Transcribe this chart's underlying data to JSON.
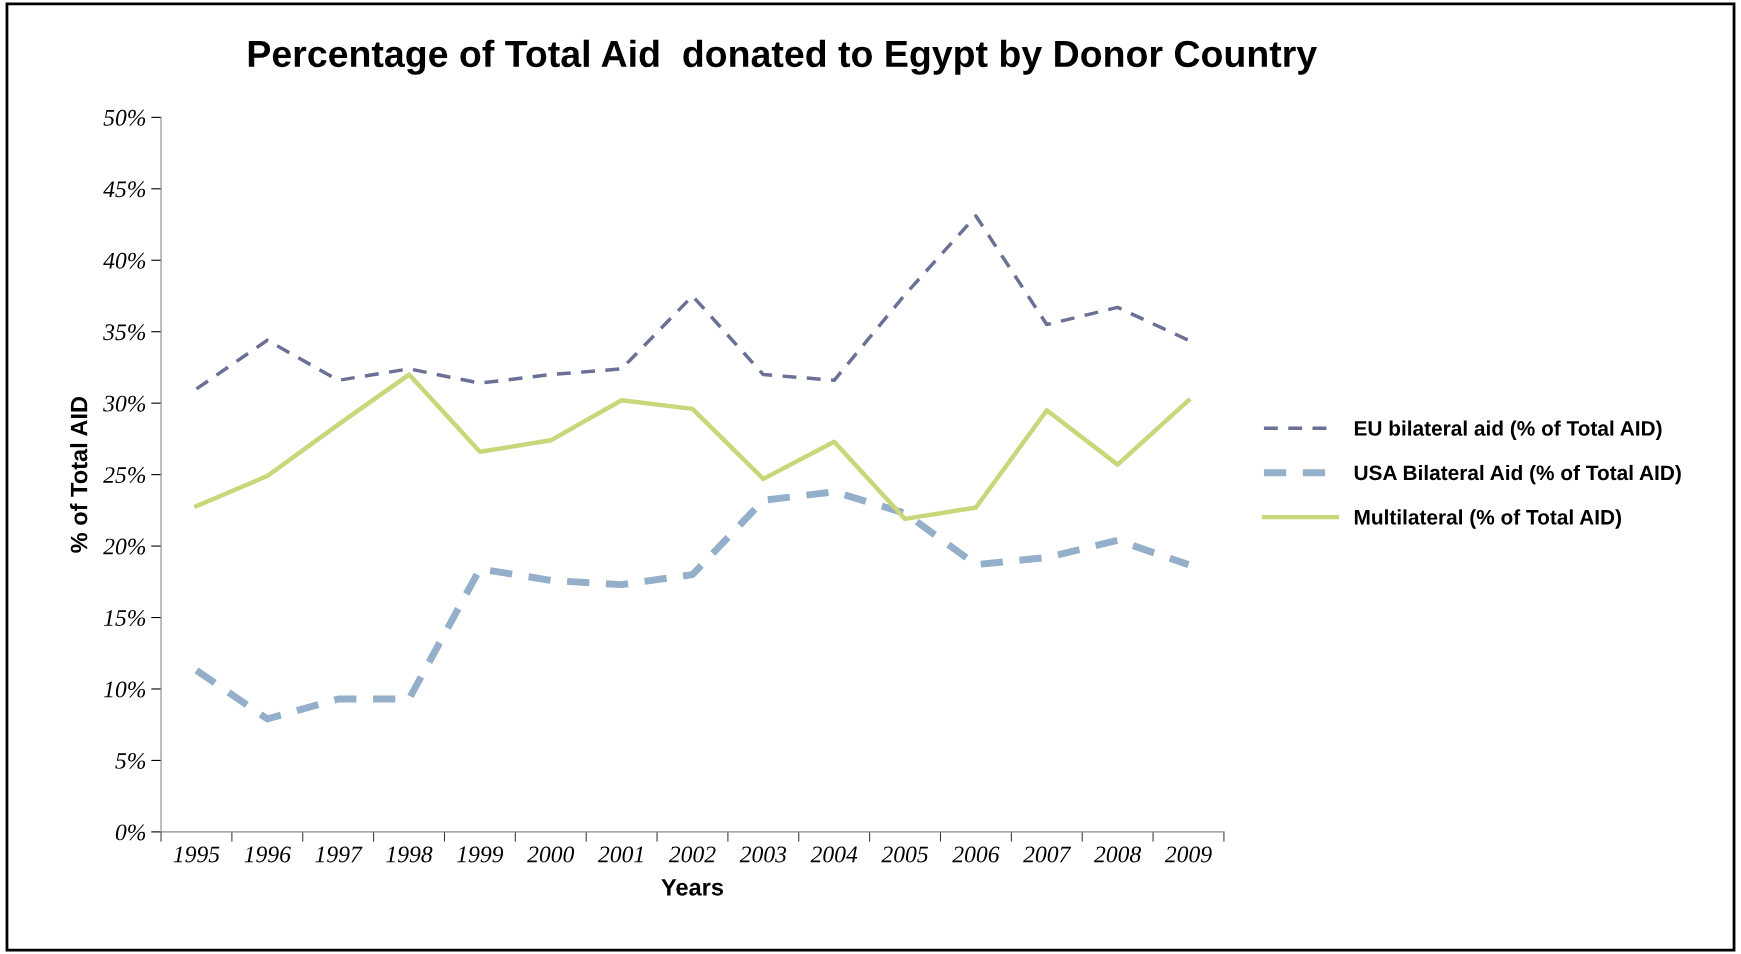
{
  "chart_data": {
    "type": "line",
    "title": "Percentage of Total Aid  donated to Egypt by Donor Country",
    "xlabel": "Years",
    "ylabel": "% of Total AID",
    "categories": [
      "1995",
      "1996",
      "1997",
      "1998",
      "1999",
      "2000",
      "2001",
      "2002",
      "2003",
      "2004",
      "2005",
      "2006",
      "2007",
      "2008",
      "2009"
    ],
    "series": [
      {
        "name": "EU bilateral aid (% of Total AID)",
        "color": "#6b7096",
        "line_style": "dashed",
        "values": [
          31.0,
          34.4,
          31.6,
          32.4,
          31.4,
          32.0,
          32.4,
          37.5,
          32.0,
          31.6,
          37.6,
          43.1,
          35.5,
          36.7,
          34.4
        ]
      },
      {
        "name": "USA Bilateral Aid (% of Total AID)",
        "color": "#94afc9",
        "line_style": "dashed",
        "values": [
          11.3,
          7.9,
          9.3,
          9.3,
          18.4,
          17.6,
          17.3,
          18.0,
          23.2,
          23.8,
          22.3,
          18.7,
          19.2,
          20.4,
          18.7
        ]
      },
      {
        "name": "Multilateral (% of Total AID)",
        "color": "#c9d67a",
        "line_style": "solid",
        "values": [
          22.8,
          24.9,
          28.5,
          32.0,
          26.6,
          27.4,
          30.2,
          29.6,
          24.7,
          27.3,
          21.9,
          22.7,
          29.5,
          25.7,
          30.2
        ]
      }
    ],
    "ylim": [
      0,
      50
    ],
    "yticks": [
      {
        "value": 0,
        "label": "0%"
      },
      {
        "value": 5,
        "label": "5%"
      },
      {
        "value": 10,
        "label": "10%"
      },
      {
        "value": 15,
        "label": "15%"
      },
      {
        "value": 20,
        "label": "20%"
      },
      {
        "value": 25,
        "label": "25%"
      },
      {
        "value": 30,
        "label": "30%"
      },
      {
        "value": 35,
        "label": "35%"
      },
      {
        "value": 40,
        "label": "40%"
      },
      {
        "value": 45,
        "label": "45%"
      },
      {
        "value": 50,
        "label": "50%"
      }
    ],
    "grid": false,
    "legend": "right",
    "marker": "none"
  }
}
